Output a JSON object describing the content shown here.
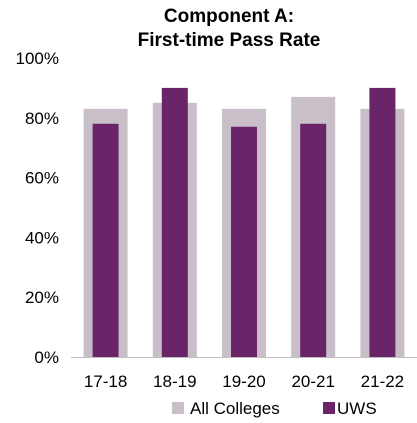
{
  "chart_data": {
    "type": "bar",
    "title_lines": [
      "Component A:",
      "First-time Pass Rate"
    ],
    "categories": [
      "17-18",
      "18-19",
      "19-20",
      "20-21",
      "21-22"
    ],
    "series": [
      {
        "name": "All Colleges",
        "values": [
          83,
          85,
          83,
          87,
          83
        ],
        "color": "#c9bfc9"
      },
      {
        "name": "UWS",
        "values": [
          78,
          90,
          77,
          78,
          90
        ],
        "color": "#6a2468"
      }
    ],
    "ylim": [
      0,
      100
    ],
    "yticks": [
      "0%",
      "20%",
      "40%",
      "60%",
      "80%",
      "100%"
    ],
    "ytick_values": [
      0,
      20,
      40,
      60,
      80,
      100
    ],
    "grid": false,
    "legend_position": "bottom"
  }
}
